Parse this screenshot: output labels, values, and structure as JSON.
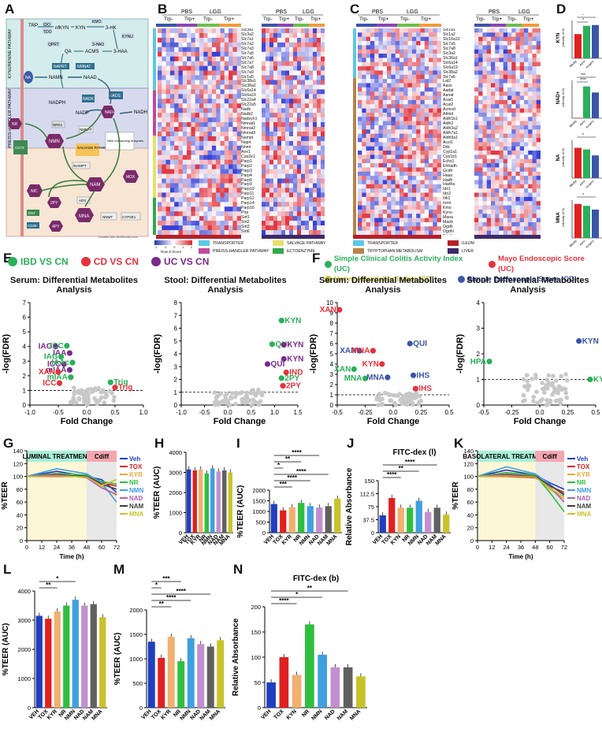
{
  "panels": {
    "A": "A",
    "B": "B",
    "C": "C",
    "D": "D",
    "E": "E",
    "F": "F",
    "G": "G",
    "H": "H",
    "I": "I",
    "J": "J",
    "K": "K",
    "L": "L",
    "M": "M",
    "N": "N"
  },
  "panelA": {
    "sections": [
      "KYNURENINE PATHWAY",
      "PREISS-HANDLER PATHWAY",
      "SALVAGE PATHWAY"
    ],
    "nodes": [
      "TRP",
      "IDO",
      "TDO",
      "nfKYN",
      "KYN",
      "KMO",
      "3-HK",
      "KYNU",
      "3-HAO",
      "3-HAA",
      "QPRT",
      "QA",
      "ACMS",
      "NAPRT",
      "NMNAT",
      "NA",
      "NAMN",
      "NAAD",
      "NADK",
      "NADPH",
      "NADP",
      "NADS",
      "NADH",
      "NAD+",
      "NRKs",
      "NMNAT",
      "NMN",
      "NR",
      "SALVAGE PATHWAY",
      "NAD consuming enzymes",
      "iNAMPT",
      "CD73",
      "NAM",
      "MOX",
      "NIC",
      "ADX",
      "NNMT",
      "CYP2E1",
      "MNA",
      "2PY",
      "4PY",
      "ENT",
      "CD38"
    ],
    "credit": "Created with BioRender.com"
  },
  "panelB": {
    "groups": [
      "PBS",
      "LGG",
      "PBS",
      "LGG"
    ],
    "subgroups": [
      "Trp-",
      "Trp+",
      "Trp-",
      "Trp+",
      "Trp-",
      "Trp+",
      "Trp-",
      "Trp+"
    ],
    "genes": [
      "Slc3a1",
      "Slc3a2",
      "Slc7a1",
      "Slc7a2",
      "Slc7a3",
      "Slc7a5",
      "Slc7a6",
      "Slc7a7",
      "Slc7a8",
      "Slc7a9",
      "Slc1a5",
      "Slc38a1",
      "Slc38a2",
      "Slc6a14",
      "Slc6a19",
      "Slc22a4",
      "Slc22a5",
      "Nadk",
      "Nadk2",
      "Nadsyn1",
      "Nmnat1",
      "Nmnat2",
      "Nmnat3",
      "Nampt",
      "Naprt",
      "Nnmt",
      "Aox1",
      "Cyp2e1",
      "Parp1",
      "Parp2",
      "Parp3",
      "Parp4",
      "Parp6",
      "Parp9",
      "Parp10",
      "Parp11",
      "Parp12",
      "Parp14",
      "Parp16",
      "Pnp",
      "Sirt1",
      "Sirt2",
      "Sirt3",
      "Sirt6",
      "Sirt7",
      "Cd38",
      "Nt5e",
      "Enpp1",
      "Enpp3",
      "Bst1",
      "Nmrk1",
      "Nmrk2",
      "Slc29a1",
      "Slc29a2",
      "Slc29a3",
      "Slc28a1",
      "Slc28a2",
      "Slc28a3",
      "Dck",
      "Nt5c"
    ],
    "scale_ticks": [
      "-2",
      "-1",
      "0",
      "1",
      "2"
    ],
    "scale_label": "Row Z-Score",
    "legend": [
      "TRANSPORTER",
      "PREISS-HANDLER PATHWAY",
      "SALVAGE PATHWAY",
      "ECTOENZYME"
    ]
  },
  "panelC": {
    "genes": [
      "Slc1a1",
      "Slc1a2",
      "Slc16a10",
      "Slc7a5",
      "Slc7a8",
      "Slc3a2",
      "Slc36a1",
      "Slc6a14",
      "Slc6a19",
      "Slc38a2",
      "Slc7a6",
      "Lat2",
      "Aass",
      "Aadat",
      "Aanat",
      "Acat1",
      "Acat2",
      "Acmsd",
      "Afmid",
      "Aldh1b1",
      "Aldh2",
      "Aldh3a2",
      "Aldh7a1",
      "Aldh9a1",
      "Acsl1",
      "Ddc",
      "Cyp1a1",
      "Cyp1b1",
      "Echs1",
      "Ehhadh",
      "Gcdh",
      "Haao",
      "Hadh",
      "Hadha",
      "Ido1",
      "Ido2",
      "Il4i1",
      "Inmt",
      "Kmo",
      "Kynu",
      "Maoa",
      "Maob",
      "Ogdh",
      "Ogdhl",
      "Tdo2",
      "Tph1",
      "Tph2",
      "Wars",
      "Wars2"
    ],
    "legend": [
      "TRANSPORTER",
      "TRYPTOPHAN METABOLISM",
      "ILEUM",
      "LIVER"
    ]
  },
  "panelD": {
    "charts": [
      {
        "ylabel": "KYN",
        "unit": "(intensity 10^6)",
        "categories": [
          "Media",
          "Aero",
          "Anaero"
        ],
        "values": [
          3.2,
          4.3,
          4.4
        ],
        "ylim": [
          0,
          5
        ],
        "sig": [
          "*",
          "*"
        ]
      },
      {
        "ylabel": "NAD+",
        "unit": "(intensity 10^5)",
        "categories": [
          "Media",
          "Aero",
          "Anaero"
        ],
        "values": [
          0.1,
          8.4,
          6.8
        ],
        "ylim": [
          0,
          10
        ],
        "sig": [
          "***",
          "****"
        ]
      },
      {
        "ylabel": "NA",
        "unit": "(intensity 10^6)",
        "categories": [
          "Media",
          "Aero",
          "Anaero"
        ],
        "values": [
          9.6,
          9.1,
          7.2
        ],
        "ylim": [
          0,
          12
        ],
        "sig": [
          "*"
        ]
      },
      {
        "ylabel": "MNA",
        "unit": "(intensity 10^5)",
        "categories": [
          "Media",
          "Aero",
          "Anaero"
        ],
        "values": [
          1.8,
          1.7,
          1.5
        ],
        "ylim": [
          0,
          2
        ],
        "sig": [
          "*"
        ]
      }
    ]
  },
  "panelE": {
    "legend": [
      {
        "label": "IBD VS CN",
        "color": "#2bb05a"
      },
      {
        "label": "CD VS CN",
        "color": "#e8303a"
      },
      {
        "label": "UC VS CN",
        "color": "#7a2a8c"
      }
    ],
    "serum_title": "Serum: Differential Metabolites Analysis",
    "stool_title": "Stool: Differential Metabolites Analysis",
    "ylabel": "-log(FDR)",
    "xlabel": "Fold Change"
  },
  "panelF": {
    "legend": [
      {
        "label": "Simple Clinical Colitis Activity Index (UC)",
        "color": "#2bb05a"
      },
      {
        "label": "Mayo Endoscopic Score (UC)",
        "color": "#e8303a"
      },
      {
        "label": "Harvey-Bradshar Index (CD)",
        "color": "#c8c22a"
      },
      {
        "label": "Simple Endoscopic Score (CD)",
        "color": "#3b55a8"
      }
    ],
    "serum_title": "Serum: Differential Metabolites Analysis",
    "stool_title": "Stool: Differential Metabolites Analysis"
  },
  "chart_data": [
    {
      "type": "scatter",
      "panel": "E-serum",
      "title": "Serum: Differential Metabolites Analysis",
      "xlabel": "Fold Change",
      "ylabel": "-log(FDR)",
      "xlim": [
        -1.0,
        1.0
      ],
      "ylim": [
        0,
        7
      ],
      "threshold": 1,
      "points": [
        {
          "label": "IAG",
          "x": -0.55,
          "y": 4.0,
          "series": "UC VS CN"
        },
        {
          "label": "ICC",
          "x": -0.35,
          "y": 4.05,
          "series": "IBD VS CN"
        },
        {
          "label": "IAA",
          "x": -0.3,
          "y": 3.55,
          "series": "UC VS CN"
        },
        {
          "label": "IAG",
          "x": -0.45,
          "y": 3.3,
          "series": "IBD VS CN"
        },
        {
          "label": "ICC",
          "x": -0.4,
          "y": 2.8,
          "series": "UC VS CN"
        },
        {
          "label": "IAAc",
          "x": -0.25,
          "y": 2.9,
          "series": "IBD VS CN"
        },
        {
          "label": "mIAA",
          "x": -0.3,
          "y": 2.4,
          "series": "UC VS CN"
        },
        {
          "label": "XAN",
          "x": -0.5,
          "y": 2.25,
          "series": "CD VS CN"
        },
        {
          "label": "mIAA",
          "x": -0.28,
          "y": 1.9,
          "series": "IBD VS CN"
        },
        {
          "label": "ICC",
          "x": -0.48,
          "y": 1.5,
          "series": "CD VS CN"
        },
        {
          "label": "Trig",
          "x": 0.42,
          "y": 1.55,
          "series": "IBD VS CN"
        },
        {
          "label": "Trig",
          "x": 0.5,
          "y": 1.2,
          "series": "CD VS CN"
        }
      ]
    },
    {
      "type": "scatter",
      "panel": "E-stool",
      "title": "Stool: Differential Metabolites Analysis",
      "xlabel": "Fold Change",
      "ylabel": "-log(FDR)",
      "xlim": [
        -1.0,
        1.5
      ],
      "ylim": [
        0,
        8
      ],
      "threshold": 1,
      "points": [
        {
          "label": "KYN",
          "x": 1.15,
          "y": 6.6,
          "series": "IBD VS CN"
        },
        {
          "label": "QUI",
          "x": 0.95,
          "y": 4.75,
          "series": "IBD VS CN"
        },
        {
          "label": "KYN",
          "x": 1.2,
          "y": 4.7,
          "series": "UC VS CN"
        },
        {
          "label": "QUI",
          "x": 0.85,
          "y": 3.2,
          "series": "UC VS CN"
        },
        {
          "label": "KYN",
          "x": 1.2,
          "y": 3.6,
          "series": "UC VS CN"
        },
        {
          "label": "IND",
          "x": 1.25,
          "y": 2.55,
          "series": "CD VS CN"
        },
        {
          "label": "2PY",
          "x": 1.15,
          "y": 2.1,
          "series": "IBD VS CN"
        },
        {
          "label": "2PY",
          "x": 1.18,
          "y": 1.5,
          "series": "CD VS CN"
        }
      ]
    },
    {
      "type": "scatter",
      "panel": "F-serum",
      "title": "Serum: Differential Metabolites Analysis",
      "xlabel": "Fold Change",
      "ylabel": "-log(FDR)",
      "xlim": [
        -0.5,
        0.5
      ],
      "ylim": [
        0,
        10
      ],
      "threshold": 1,
      "points": [
        {
          "label": "XAN",
          "x": -0.48,
          "y": 9.3,
          "series": "Mayo Endoscopic Score (UC)"
        },
        {
          "label": "QUI",
          "x": 0.15,
          "y": 6.0,
          "series": "Simple Endoscopic Score (CD)"
        },
        {
          "label": "XAN",
          "x": -0.3,
          "y": 5.3,
          "series": "Simple Endoscopic Score (CD)"
        },
        {
          "label": "MNA",
          "x": -0.18,
          "y": 5.3,
          "series": "Mayo Endoscopic Score (UC)"
        },
        {
          "label": "KYN",
          "x": -0.1,
          "y": 4.0,
          "series": "Mayo Endoscopic Score (UC)"
        },
        {
          "label": "XAN",
          "x": -0.35,
          "y": 3.5,
          "series": "Simple Clinical Colitis Activity Index (UC)"
        },
        {
          "label": "MNA",
          "x": -0.25,
          "y": 2.6,
          "series": "Simple Clinical Colitis Activity Index (UC)"
        },
        {
          "label": "MNA",
          "x": -0.05,
          "y": 2.7,
          "series": "Simple Endoscopic Score (CD)"
        },
        {
          "label": "IHS",
          "x": 0.18,
          "y": 2.9,
          "series": "Simple Endoscopic Score (CD)"
        },
        {
          "label": "IHS",
          "x": 0.2,
          "y": 1.6,
          "series": "Mayo Endoscopic Score (UC)"
        }
      ]
    },
    {
      "type": "scatter",
      "panel": "F-stool",
      "title": "Stool: Differential Metabolites Analysis",
      "xlabel": "Fold Change",
      "ylabel": "-log(FDR)",
      "xlim": [
        -0.5,
        0.5
      ],
      "ylim": [
        0,
        4
      ],
      "threshold": 1,
      "points": [
        {
          "label": "KYN",
          "x": 0.35,
          "y": 2.5,
          "series": "Simple Endoscopic Score (CD)"
        },
        {
          "label": "HPA",
          "x": -0.45,
          "y": 1.7,
          "series": "Simple Clinical Colitis Activity Index (UC)"
        },
        {
          "label": "KYN",
          "x": 0.45,
          "y": 1.0,
          "series": "Simple Clinical Colitis Activity Index (UC)"
        }
      ]
    },
    {
      "type": "line",
      "panel": "G",
      "title": "LUMINAL TREATMENT",
      "annotation": "Cdiff",
      "xlabel": "Time (h)",
      "ylabel": "%TEER",
      "x": [
        0,
        24,
        48,
        60,
        72
      ],
      "xlim": [
        0,
        72
      ],
      "ylim": [
        0,
        140
      ],
      "series": [
        {
          "name": "Veh",
          "color": "#1f3fbf",
          "values": [
            100,
            108,
            100,
            95,
            75
          ]
        },
        {
          "name": "TOX",
          "color": "#e02020",
          "values": [
            100,
            100,
            100,
            90,
            85
          ]
        },
        {
          "name": "KYR",
          "color": "#f0a830",
          "values": [
            100,
            103,
            98,
            85,
            70
          ]
        },
        {
          "name": "NR",
          "color": "#2fbf3f",
          "values": [
            100,
            105,
            102,
            92,
            88
          ]
        },
        {
          "name": "NMN",
          "color": "#3fa0e0",
          "values": [
            100,
            112,
            104,
            90,
            60
          ]
        },
        {
          "name": "NAD",
          "color": "#b060b0",
          "values": [
            100,
            104,
            98,
            82,
            72
          ]
        },
        {
          "name": "NAM",
          "color": "#404040",
          "values": [
            100,
            102,
            100,
            88,
            80
          ]
        },
        {
          "name": "MNA",
          "color": "#c8c22a",
          "values": [
            100,
            101,
            99,
            86,
            95
          ]
        }
      ]
    },
    {
      "type": "bar",
      "panel": "H",
      "ylabel": "%TEER (AUC)",
      "categories": [
        "VEH",
        "TOX",
        "KYR",
        "NR",
        "NMN",
        "NAD",
        "NAM",
        "MNA"
      ],
      "values": [
        3150,
        3100,
        3150,
        2950,
        3200,
        3050,
        3100,
        3000
      ],
      "ylim": [
        0,
        4000
      ]
    },
    {
      "type": "bar",
      "panel": "I",
      "ylabel": "%TEER (AUC)",
      "categories": [
        "VEH",
        "TOX",
        "KYR",
        "NR",
        "NMN",
        "NAD",
        "NAM",
        "MNA"
      ],
      "values": [
        1350,
        1050,
        1200,
        1400,
        1250,
        1180,
        1250,
        1600
      ],
      "ylim": [
        0,
        2000
      ],
      "sig": [
        "***",
        "****",
        "****",
        "*",
        "**",
        "****"
      ]
    },
    {
      "type": "bar",
      "panel": "J",
      "title": "FITC-dex (l)",
      "ylabel": "Relative Absorbance",
      "categories": [
        "VEH",
        "TOX",
        "KYN",
        "NR",
        "NMN",
        "NAD",
        "NAM",
        "MNA"
      ],
      "values": [
        50,
        100,
        72,
        72,
        92,
        60,
        72,
        52
      ],
      "ylim": [
        0,
        150
      ],
      "sig": [
        "****",
        "**",
        "****"
      ]
    },
    {
      "type": "line",
      "panel": "K",
      "title": "BASOLATERAL TREATMENT",
      "annotation": "Cdiff",
      "xlabel": "Time (h)",
      "ylabel": "%TEER",
      "x": [
        0,
        24,
        48,
        60,
        72
      ],
      "xlim": [
        0,
        72
      ],
      "ylim": [
        0,
        140
      ],
      "series": [
        {
          "name": "Veh",
          "color": "#1f3fbf",
          "values": [
            100,
            110,
            102,
            90,
            80
          ]
        },
        {
          "name": "TOX",
          "color": "#e02020",
          "values": [
            100,
            100,
            98,
            85,
            75
          ]
        },
        {
          "name": "KYR",
          "color": "#f0a830",
          "values": [
            100,
            103,
            100,
            80,
            65
          ]
        },
        {
          "name": "NR",
          "color": "#2fbf3f",
          "values": [
            100,
            106,
            102,
            75,
            45
          ]
        },
        {
          "name": "NMN",
          "color": "#3fa0e0",
          "values": [
            100,
            115,
            104,
            88,
            70
          ]
        },
        {
          "name": "NAD",
          "color": "#b060b0",
          "values": [
            100,
            104,
            100,
            84,
            60
          ]
        },
        {
          "name": "NAM",
          "color": "#404040",
          "values": [
            100,
            102,
            100,
            86,
            72
          ]
        },
        {
          "name": "MNA",
          "color": "#c8c22a",
          "values": [
            100,
            101,
            99,
            82,
            68
          ]
        }
      ]
    },
    {
      "type": "bar",
      "panel": "L",
      "ylabel": "%TEER (AUC)",
      "categories": [
        "VEH",
        "TOX",
        "KYR",
        "NR",
        "NMN",
        "NAD",
        "NAM",
        "MNA"
      ],
      "values": [
        3150,
        3050,
        3300,
        3500,
        3700,
        3500,
        3550,
        3100
      ],
      "ylim": [
        0,
        4000
      ],
      "sig": [
        "**",
        "*"
      ]
    },
    {
      "type": "bar",
      "panel": "M",
      "ylabel": "%TEER (AUC)",
      "categories": [
        "VEH",
        "TOX",
        "KYR",
        "NR",
        "NMN",
        "NAD",
        "NAM",
        "MNA"
      ],
      "values": [
        1350,
        1020,
        1450,
        950,
        1420,
        1300,
        1250,
        1380
      ],
      "ylim": [
        0,
        2000
      ],
      "sig": [
        "**",
        "****",
        "****",
        "*",
        "***"
      ]
    },
    {
      "type": "bar",
      "panel": "N",
      "title": "FITC-dex (b)",
      "ylabel": "Relative Absorbance",
      "categories": [
        "VEH",
        "TOX",
        "KYN",
        "NR",
        "NMN",
        "NAD",
        "NAM",
        "MNA"
      ],
      "values": [
        50,
        100,
        65,
        165,
        105,
        80,
        80,
        62
      ],
      "ylim": [
        0,
        200
      ],
      "sig": [
        "****",
        "*",
        "**"
      ]
    }
  ]
}
